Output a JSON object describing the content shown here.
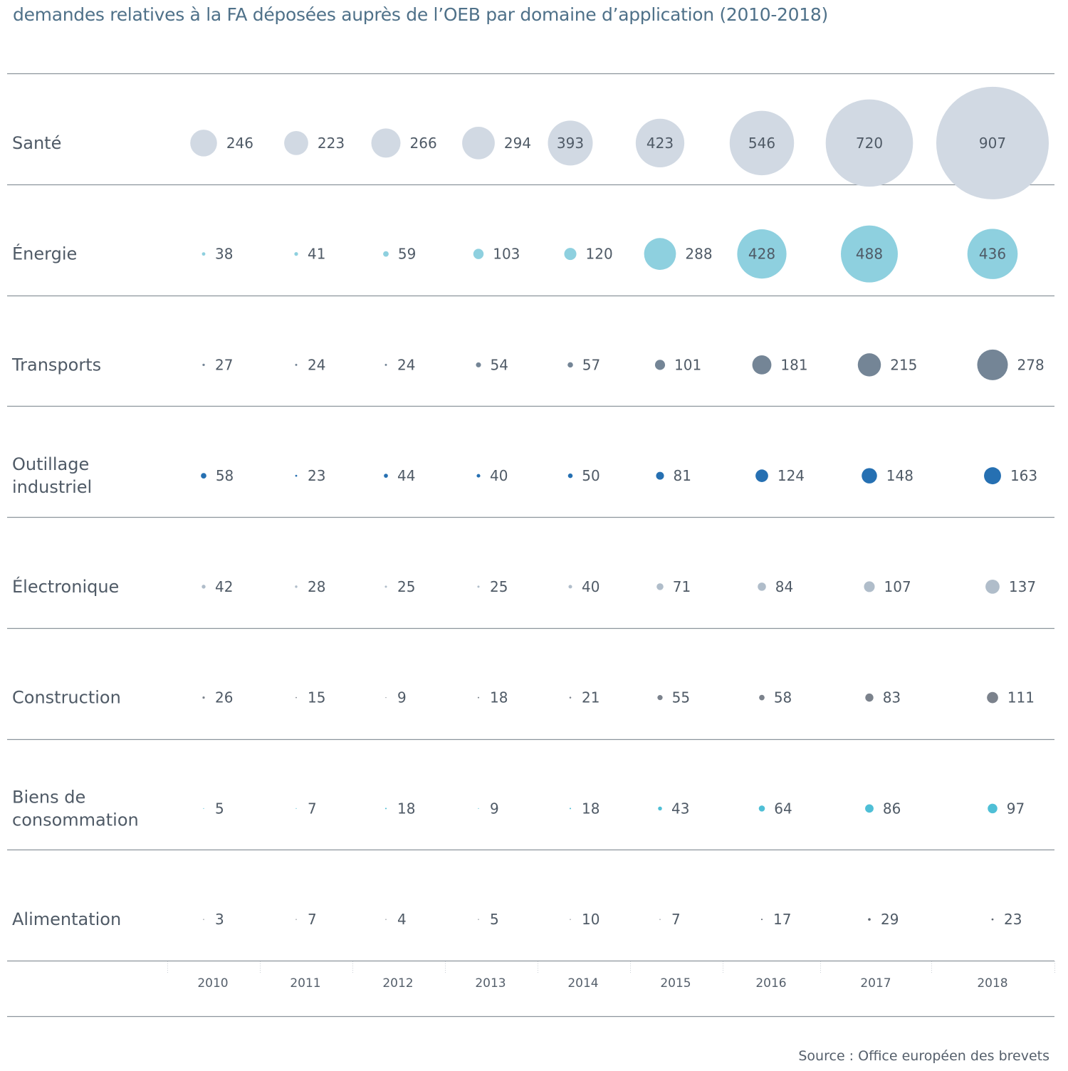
{
  "title": "demandes relatives à la FA déposées auprès de l’OEB par domaine d’application (2010-2018)",
  "source": "Source : Office européen des brevets",
  "chart_data": {
    "type": "bubble-grid",
    "title": "demandes relatives à la FA déposées auprès de l’OEB par domaine d’application (2010-2018)",
    "xlabel": "",
    "ylabel": "",
    "grid": true,
    "categories": [
      "2010",
      "2011",
      "2012",
      "2013",
      "2014",
      "2015",
      "2016",
      "2017",
      "2018"
    ],
    "series": [
      {
        "name": "Santé",
        "label_lines": [
          "Santé"
        ],
        "color": "#d1d9e3",
        "values": [
          246,
          223,
          266,
          294,
          393,
          423,
          546,
          720,
          907
        ]
      },
      {
        "name": "Énergie",
        "label_lines": [
          "Énergie"
        ],
        "color": "#8ed0df",
        "values": [
          38,
          41,
          59,
          103,
          120,
          288,
          428,
          488,
          436
        ]
      },
      {
        "name": "Transports",
        "label_lines": [
          "Transports"
        ],
        "color": "#748596",
        "values": [
          27,
          24,
          24,
          54,
          57,
          101,
          181,
          215,
          278
        ]
      },
      {
        "name": "Outillage industriel",
        "label_lines": [
          "Outillage",
          "industriel"
        ],
        "color": "#2670b2",
        "values": [
          58,
          23,
          44,
          40,
          50,
          81,
          124,
          148,
          163
        ]
      },
      {
        "name": "Électronique",
        "label_lines": [
          "Électronique"
        ],
        "color": "#b0bdca",
        "values": [
          42,
          28,
          25,
          25,
          40,
          71,
          84,
          107,
          137
        ]
      },
      {
        "name": "Construction",
        "label_lines": [
          "Construction"
        ],
        "color": "#7b828c",
        "values": [
          26,
          15,
          9,
          18,
          21,
          55,
          58,
          83,
          111
        ]
      },
      {
        "name": "Biens de consommation",
        "label_lines": [
          "Biens de",
          "consommation"
        ],
        "color": "#4fbfd6",
        "values": [
          5,
          7,
          18,
          9,
          18,
          43,
          64,
          86,
          97
        ]
      },
      {
        "name": "Alimentation",
        "label_lines": [
          "Alimentation"
        ],
        "color": "#5d6570",
        "values": [
          3,
          7,
          4,
          5,
          10,
          7,
          17,
          29,
          23
        ]
      }
    ]
  }
}
